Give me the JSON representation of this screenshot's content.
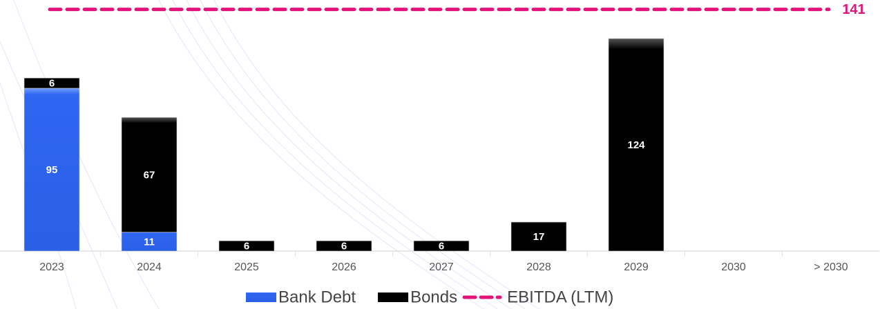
{
  "chart_data": {
    "type": "stacked_bar",
    "categories": [
      "2023",
      "2024",
      "2025",
      "2026",
      "2027",
      "2028",
      "2029",
      "2030",
      "> 2030"
    ],
    "series": [
      {
        "name": "Bank Debt",
        "color": "#2f66f2",
        "values": [
          95,
          11,
          null,
          null,
          null,
          null,
          null,
          null,
          null
        ]
      },
      {
        "name": "Bonds",
        "color": "#000000",
        "values": [
          6,
          67,
          6,
          6,
          6,
          17,
          124,
          null,
          null
        ]
      }
    ],
    "reference_line": {
      "name": "EBITDA (LTM)",
      "value": 141,
      "color": "#e2137a"
    },
    "ylim": [
      0,
      146.5
    ],
    "legend": "bottom"
  }
}
